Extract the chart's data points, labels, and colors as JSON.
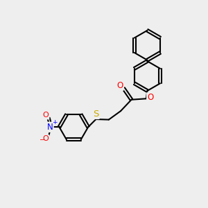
{
  "background_color": "#eeeeee",
  "bond_color": "#000000",
  "bond_width": 1.5,
  "atom_colors": {
    "O": "#ff0000",
    "N": "#0000ff",
    "S": "#ccaa00",
    "O_neg": "#ff0000"
  },
  "font_size_atom": 8.5,
  "figsize": [
    3.0,
    3.0
  ],
  "dpi": 100
}
